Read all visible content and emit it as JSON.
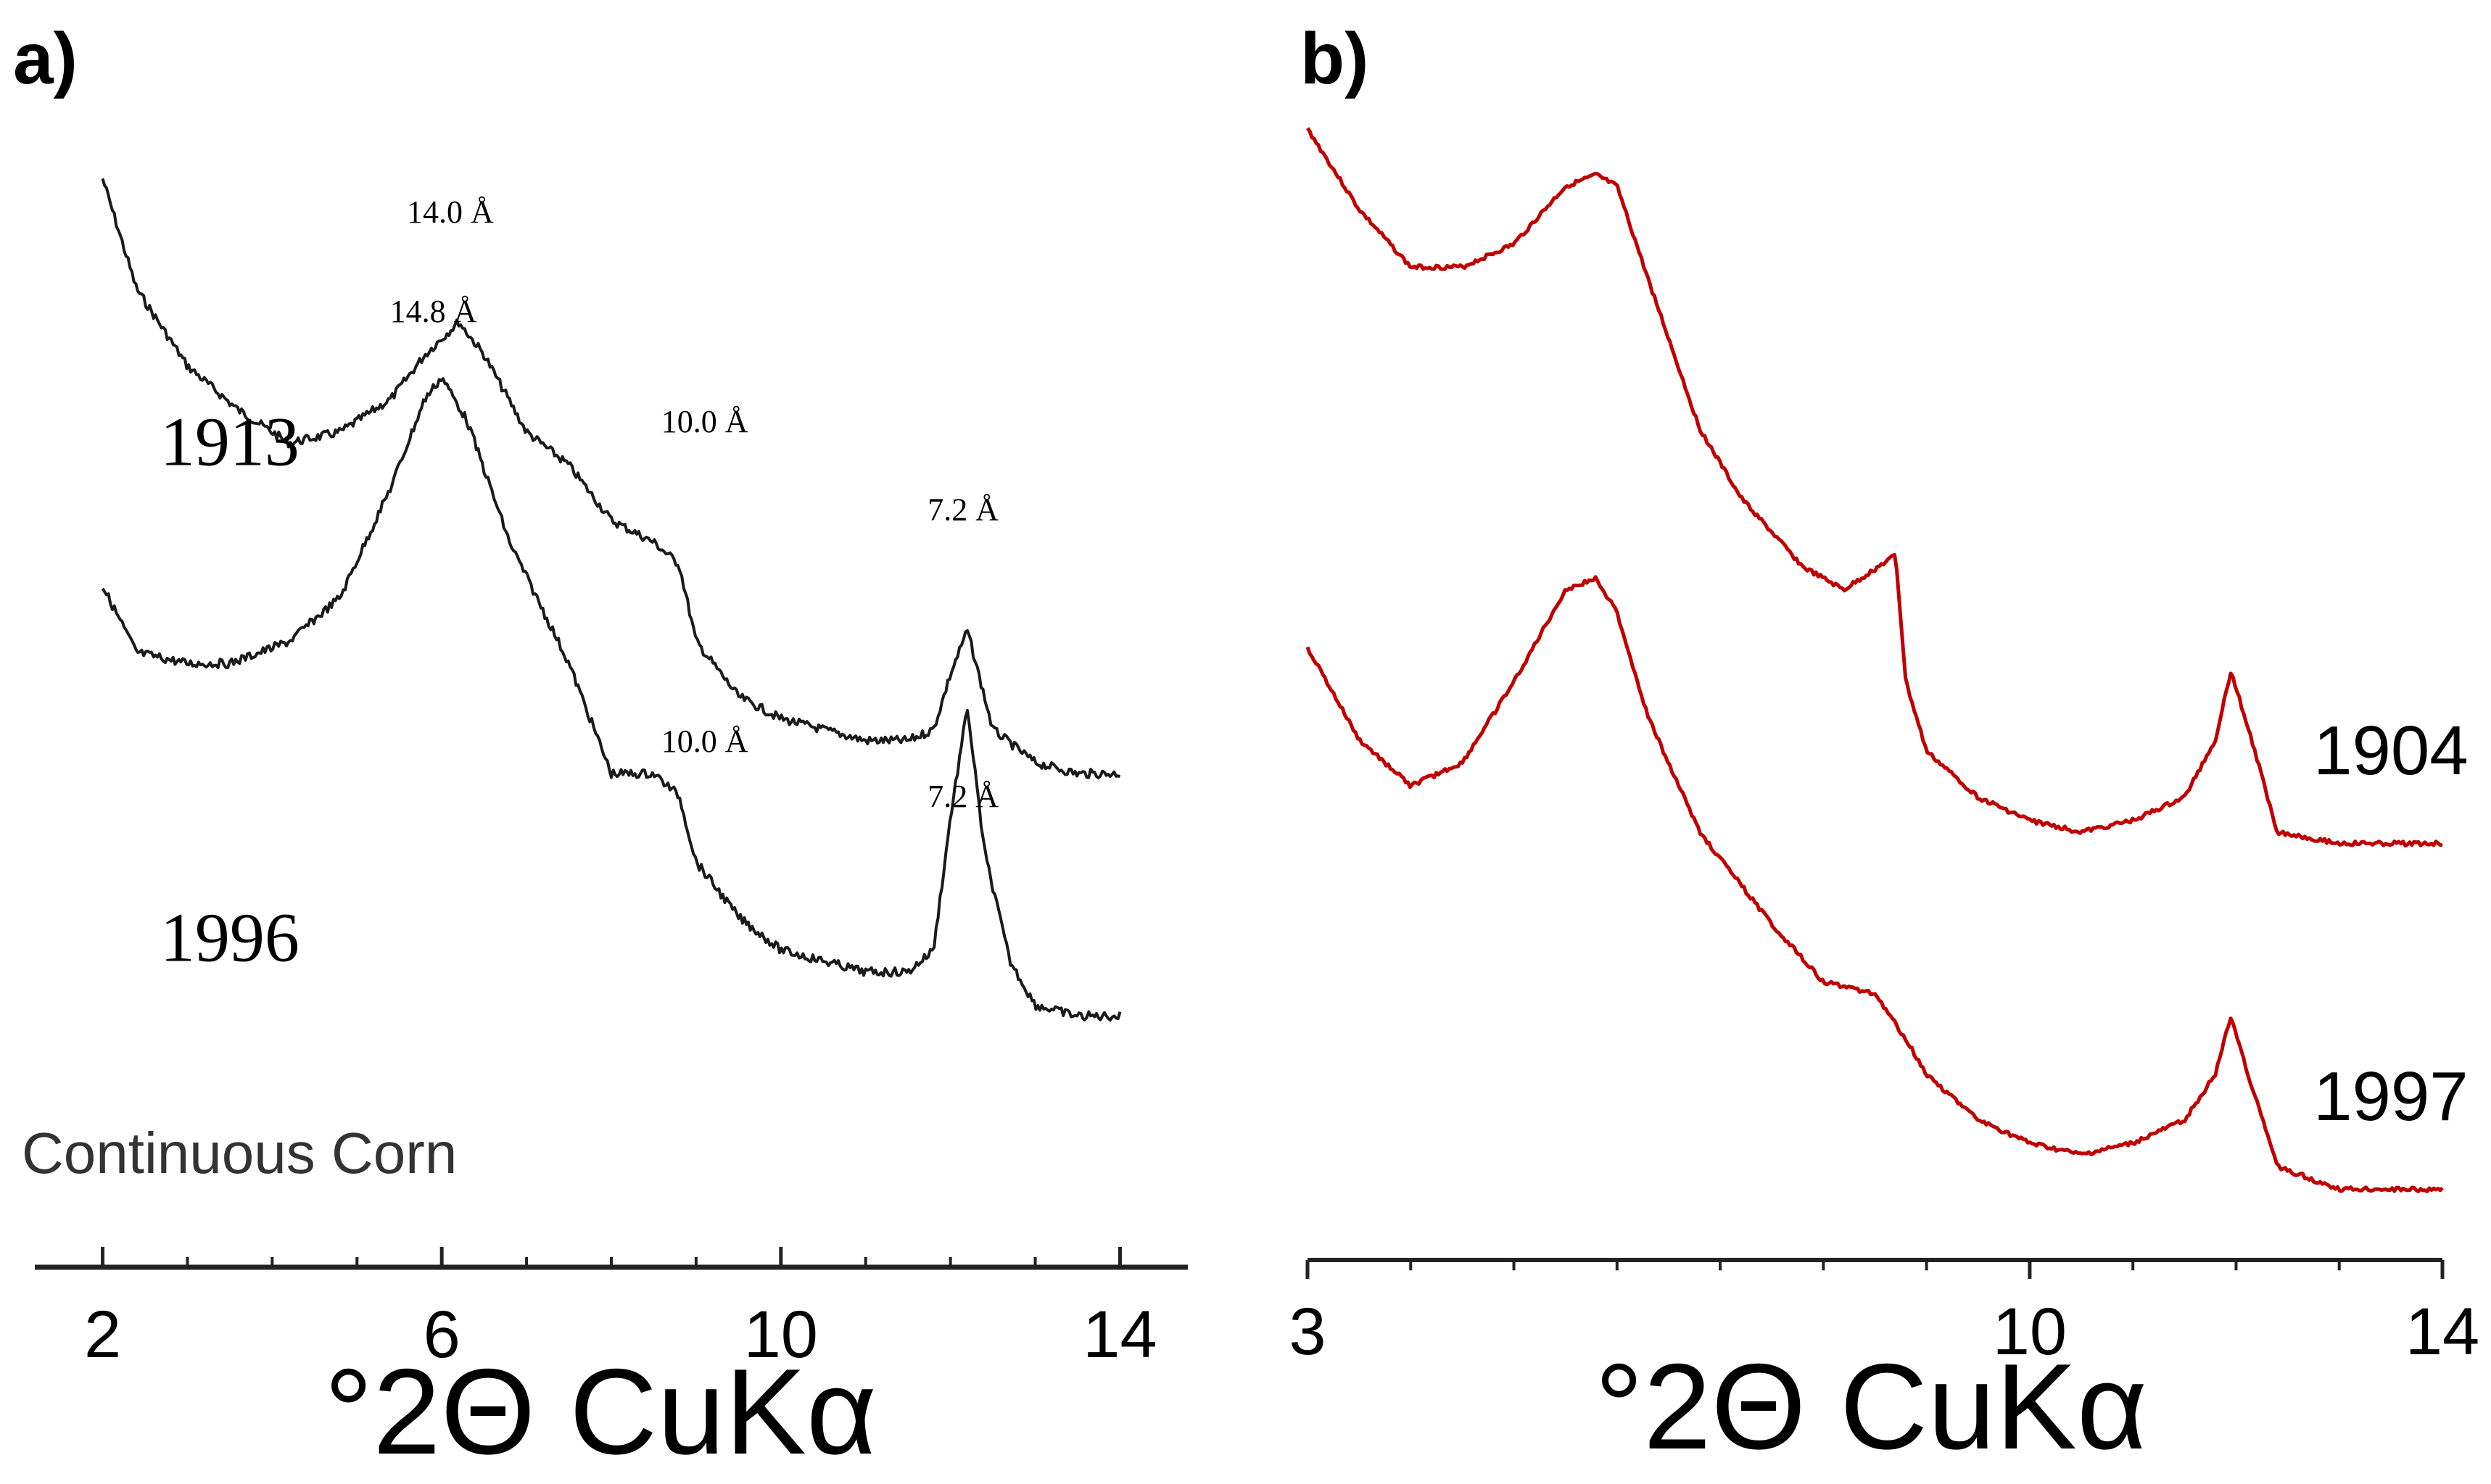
{
  "chart_data": [
    {
      "type": "line",
      "panel_label": "a)",
      "xlabel": "°2Θ CuKα",
      "ylabel": "",
      "xlim": [
        1.2,
        14.8
      ],
      "ylim": [
        0,
        100
      ],
      "x_ticks": [
        2,
        6,
        10,
        14
      ],
      "x_tick_labels": [
        "2",
        "6",
        "10",
        "14"
      ],
      "grid": false,
      "color": "#1a1a1a",
      "note": "Continuous Corn",
      "series": [
        {
          "name": "1913",
          "x": [
            2.0,
            2.4,
            3.0,
            3.6,
            4.2,
            4.8,
            5.4,
            5.8,
            6.2,
            6.5,
            7.0,
            7.5,
            8.0,
            8.5,
            8.8,
            9.0,
            9.5,
            10.0,
            10.5,
            11.0,
            11.5,
            11.8,
            12.0,
            12.2,
            12.5,
            13.0,
            13.5,
            14.0
          ],
          "y": [
            93,
            83,
            76,
            72,
            69,
            70,
            73,
            77,
            80,
            77,
            70,
            67,
            62,
            60,
            58,
            51,
            46,
            44,
            43,
            42,
            42,
            43,
            48,
            52,
            43,
            40,
            39,
            39
          ]
        },
        {
          "name": "1996",
          "x": [
            2.0,
            2.4,
            3.0,
            3.5,
            4.2,
            4.8,
            5.4,
            5.8,
            6.0,
            6.3,
            6.8,
            7.5,
            8.0,
            8.5,
            8.8,
            9.0,
            9.5,
            10.0,
            10.5,
            11.0,
            11.5,
            11.8,
            12.0,
            12.2,
            12.4,
            12.7,
            13.0,
            13.5,
            14.0
          ],
          "y": [
            56,
            50,
            49,
            49,
            51,
            55,
            65,
            73,
            75,
            71,
            60,
            49,
            39,
            39,
            37,
            31,
            26,
            23,
            22,
            21,
            21,
            23,
            35,
            45,
            32,
            22,
            18,
            17,
            17
          ]
        }
      ],
      "series_labels": [
        {
          "text": "1913",
          "x": 3.5,
          "y": 67
        },
        {
          "text": "1996",
          "x": 3.5,
          "y": 22
        }
      ],
      "annotations": [
        {
          "text": "14.0 Å",
          "x": 6.1,
          "y": 89
        },
        {
          "text": "10.0 Å",
          "x": 9.1,
          "y": 70
        },
        {
          "text": "14.8 Å",
          "x": 5.9,
          "y": 80
        },
        {
          "text": "7.2 Å",
          "x": 12.15,
          "y": 62
        },
        {
          "text": "10.0 Å",
          "x": 9.1,
          "y": 41
        },
        {
          "text": "7.2 Å",
          "x": 12.15,
          "y": 36
        }
      ]
    },
    {
      "type": "line",
      "panel_label": "b)",
      "xlabel": "°2Θ CuKα",
      "ylabel": "",
      "xlim": [
        3,
        14
      ],
      "ylim": [
        0,
        100
      ],
      "x_ticks": [
        3,
        10,
        14
      ],
      "x_tick_labels": [
        "3",
        "10",
        "14"
      ],
      "minor_x_ticks": [
        4,
        5,
        6,
        7,
        8,
        9,
        11,
        12,
        13
      ],
      "grid": false,
      "color": "#c00000",
      "series": [
        {
          "name": "1904",
          "x": [
            3.0,
            3.5,
            4.0,
            4.5,
            5.0,
            5.5,
            5.8,
            6.0,
            6.3,
            6.8,
            7.2,
            7.8,
            8.2,
            8.7,
            8.8,
            9.0,
            9.5,
            10.0,
            10.5,
            11.0,
            11.5,
            11.8,
            11.95,
            12.15,
            12.4,
            13.0,
            14.0
          ],
          "y": [
            97,
            90,
            85,
            85,
            87,
            92,
            93,
            92,
            84,
            71,
            65,
            59,
            57,
            60,
            49,
            43,
            39,
            37,
            36,
            37,
            39,
            44,
            50,
            44,
            36,
            35,
            35
          ]
        },
        {
          "name": "1997",
          "x": [
            3.0,
            3.5,
            4.0,
            4.5,
            5.0,
            5.5,
            5.8,
            6.0,
            6.3,
            6.8,
            7.5,
            8.0,
            8.5,
            8.8,
            9.0,
            9.5,
            10.0,
            10.5,
            11.0,
            11.5,
            11.8,
            11.95,
            12.15,
            12.4,
            13.0,
            14.0
          ],
          "y": [
            52,
            44,
            40,
            42,
            49,
            57,
            58,
            55,
            46,
            36,
            28,
            23,
            22,
            18,
            15,
            11,
            9,
            8,
            9,
            11,
            15,
            20,
            14,
            7,
            5,
            5
          ]
        }
      ],
      "series_labels": [
        {
          "text": "1904",
          "x": 13.5,
          "y": 41
        },
        {
          "text": "1997",
          "x": 13.5,
          "y": 11
        }
      ],
      "annotations": []
    }
  ]
}
